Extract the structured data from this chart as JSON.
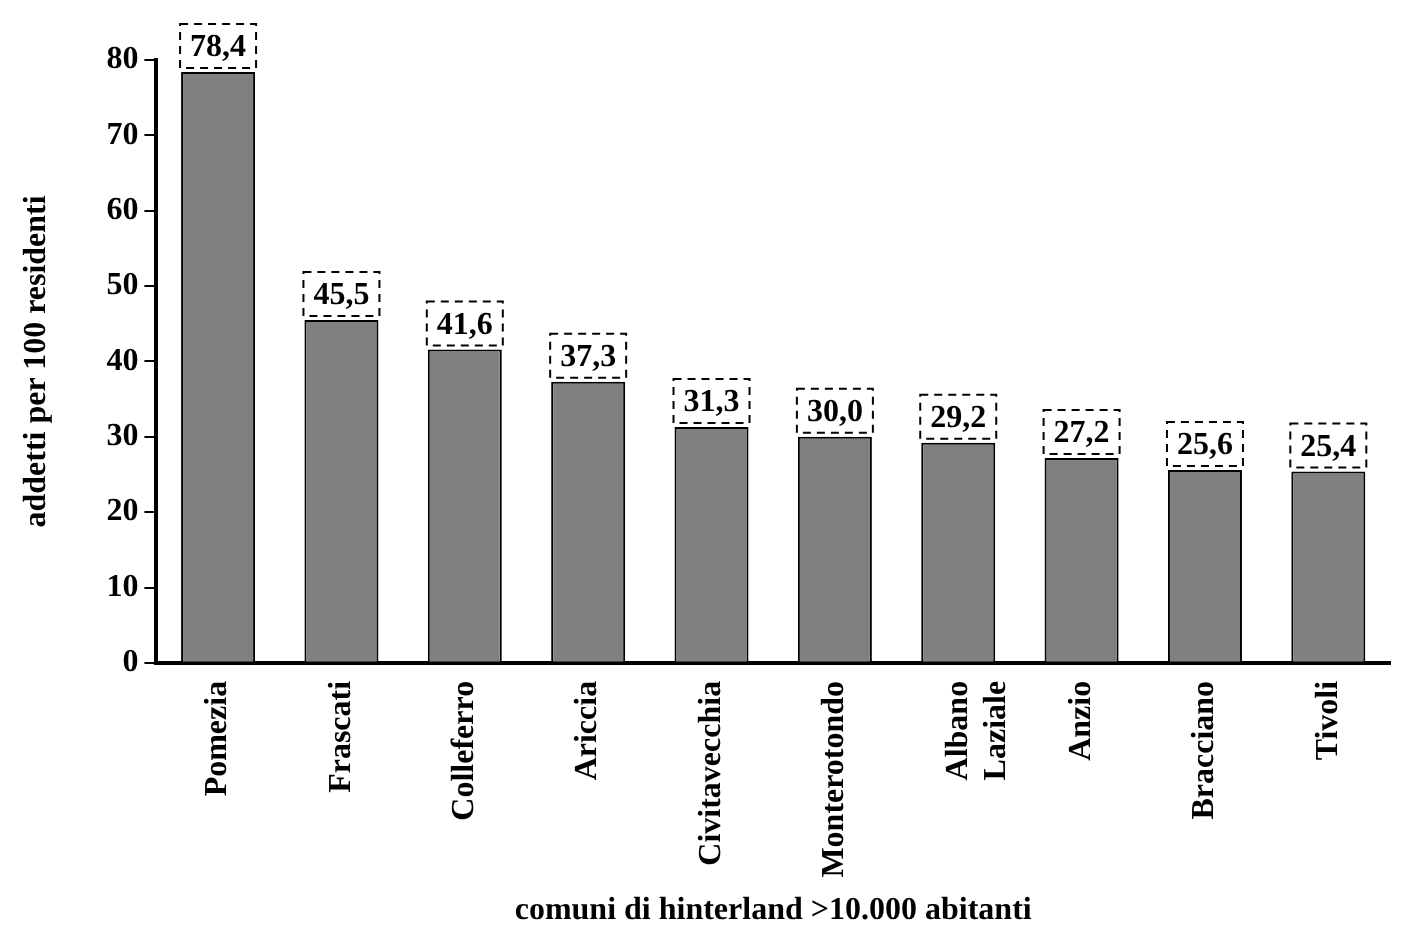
{
  "chart_data": {
    "type": "bar",
    "xlabel": "comuni di hinterland >10.000 abitanti",
    "ylabel": "addetti per 100 residenti",
    "categories": [
      "Pomezia",
      "Frascati",
      "Colleferro",
      "Ariccia",
      "Civitavecchia",
      "Monterotondo",
      "Albano Laziale",
      "Anzio",
      "Bracciano",
      "Tivoli"
    ],
    "values": [
      78.4,
      45.5,
      41.6,
      37.3,
      31.3,
      30.0,
      29.2,
      27.2,
      25.6,
      25.4
    ],
    "value_labels": [
      "78,4",
      "45,5",
      "41,6",
      "37,3",
      "31,3",
      "30,0",
      "29,2",
      "27,2",
      "25,6",
      "25,4"
    ],
    "color": "#808080",
    "ylim": [
      0,
      80
    ],
    "yticks": [
      0,
      10,
      20,
      30,
      40,
      50,
      60,
      70,
      80
    ],
    "grid": false,
    "legend": false
  }
}
